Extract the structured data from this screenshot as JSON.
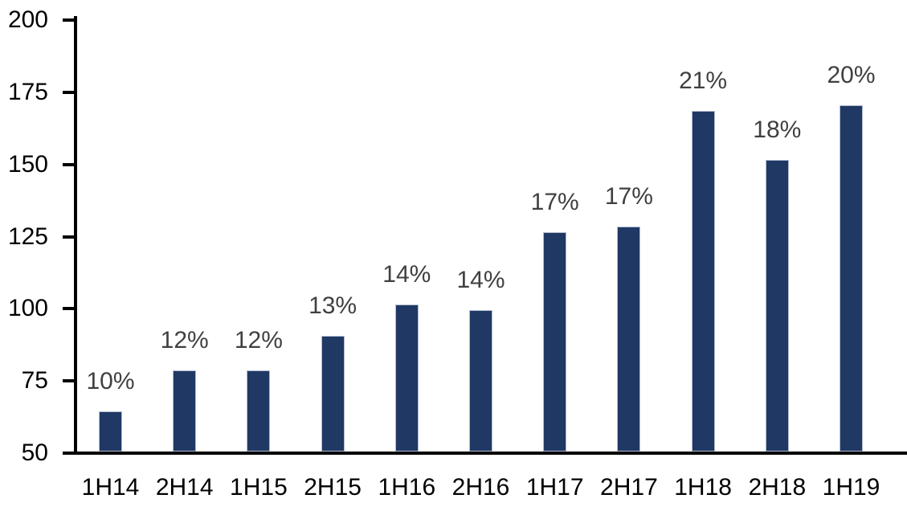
{
  "chart_data": {
    "type": "bar",
    "title": "",
    "xlabel": "",
    "ylabel": "",
    "categories": [
      "1H14",
      "2H14",
      "1H15",
      "2H15",
      "1H16",
      "2H16",
      "1H17",
      "2H17",
      "1H18",
      "2H18",
      "1H19"
    ],
    "values": [
      64,
      78,
      78,
      90,
      101,
      99,
      126,
      128,
      168,
      151,
      170
    ],
    "labels": [
      "10%",
      "12%",
      "12%",
      "13%",
      "14%",
      "14%",
      "17%",
      "17%",
      "21%",
      "18%",
      "20%"
    ],
    "ylim": [
      50,
      200
    ],
    "yticks": [
      50,
      75,
      100,
      125,
      150,
      175,
      200
    ],
    "grid": false,
    "legend": "none",
    "colors": {
      "bar_fill": "#203864",
      "bar_border": "#B3BDCF",
      "data_label": "#404040",
      "axis_text": "#000000",
      "axis_line": "#000000",
      "background": "#FFFFFF"
    }
  }
}
